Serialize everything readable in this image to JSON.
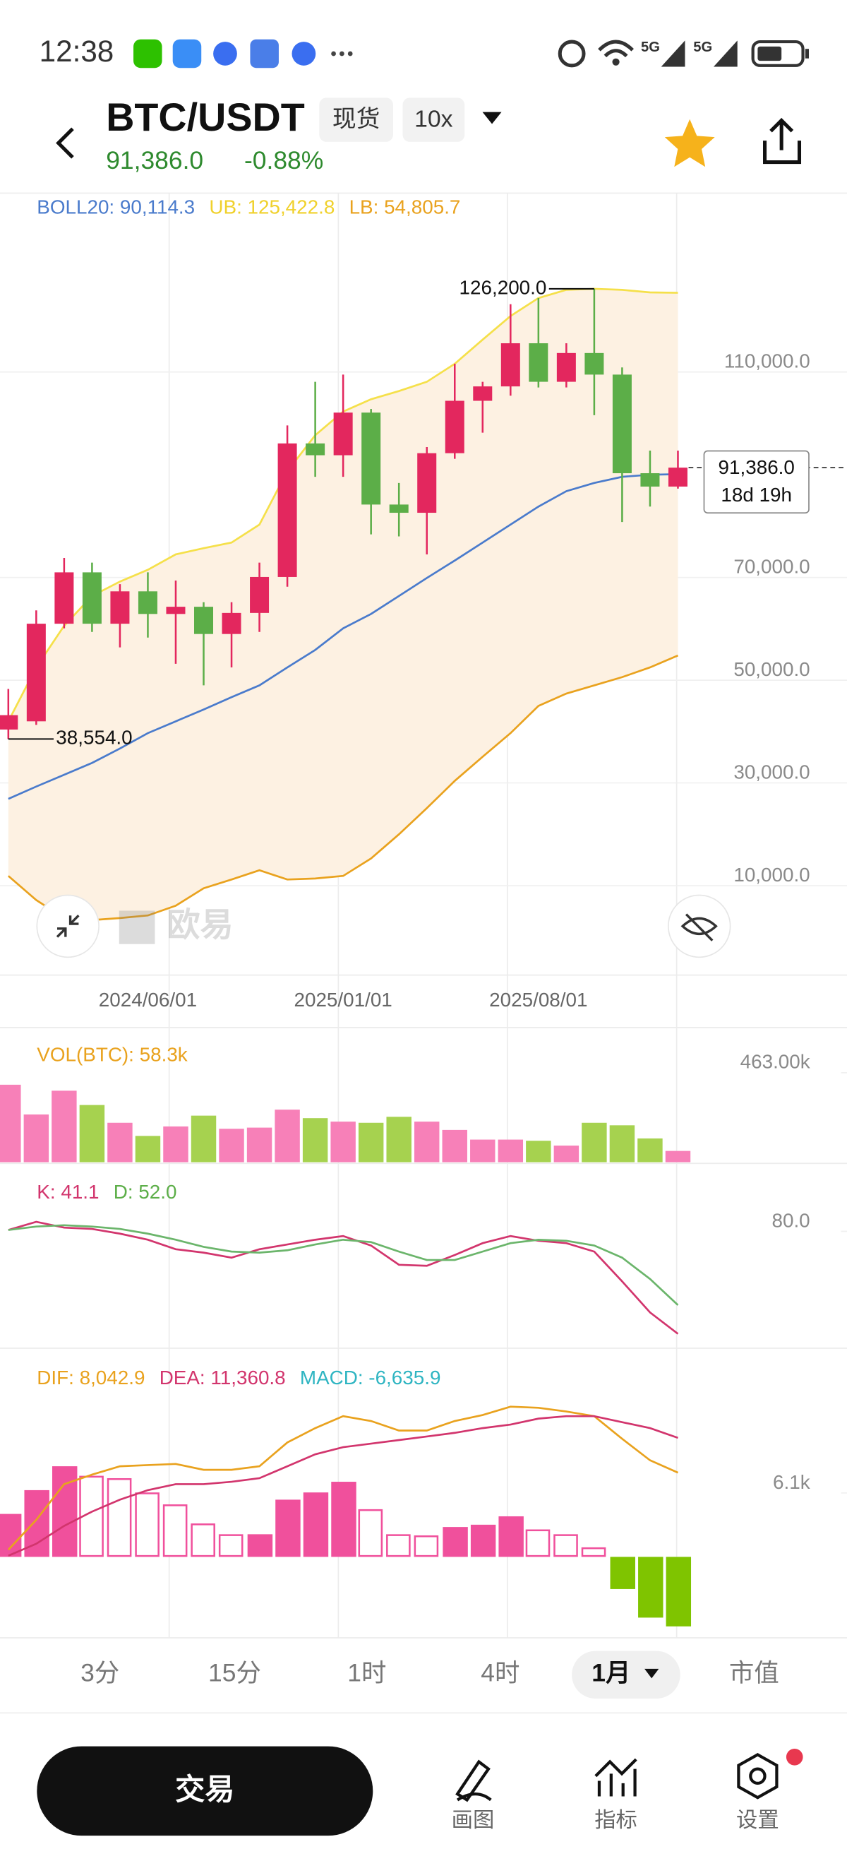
{
  "status_bar": {
    "time": "12:38"
  },
  "header": {
    "symbol": "BTC/USDT",
    "market": "现货",
    "leverage": "10x",
    "price": "91,386.0",
    "change": "-0.88%"
  },
  "chart_data": [
    {
      "type": "candlestick",
      "legend": [
        {
          "text": "BOLL20: 90,114.3",
          "color": "#4a7bcc"
        },
        {
          "text": "UB: 125,422.8",
          "color": "#f0d12c"
        },
        {
          "text": "LB: 54,805.7",
          "color": "#e9a21e"
        }
      ],
      "categories": [
        null,
        null,
        null,
        null,
        null,
        "2024/06/01",
        null,
        null,
        null,
        null,
        null,
        null,
        "2025/01/01",
        null,
        null,
        null,
        null,
        null,
        null,
        "2025/08/01",
        null,
        null,
        null,
        null,
        null
      ],
      "open": [
        40400,
        42000,
        61000,
        71000,
        61000,
        67300,
        62900,
        64300,
        59000,
        63100,
        70100,
        96100,
        93800,
        102100,
        84200,
        82600,
        94200,
        104400,
        107200,
        115600,
        108100,
        113700,
        109500,
        90300,
        87700
      ],
      "high": [
        48300,
        63600,
        73800,
        72900,
        68700,
        71000,
        69400,
        65200,
        65200,
        72900,
        99600,
        108100,
        109500,
        102800,
        88400,
        95400,
        111600,
        108100,
        123200,
        124400,
        115600,
        126200,
        110900,
        94700,
        94700
      ],
      "low": [
        38554,
        41300,
        60100,
        59400,
        56400,
        58300,
        53200,
        49000,
        52500,
        59400,
        68200,
        89600,
        89600,
        78400,
        78000,
        74500,
        93100,
        98200,
        105400,
        107000,
        107000,
        101600,
        80800,
        83800,
        87300
      ],
      "close": [
        43200,
        61000,
        71000,
        61000,
        67300,
        62900,
        64300,
        59000,
        63100,
        70100,
        96100,
        93800,
        102100,
        84200,
        82600,
        94200,
        104400,
        107200,
        115600,
        108100,
        113700,
        109500,
        90300,
        87700,
        91386
      ],
      "up_color": "#e3275e",
      "down_color": "#5cae48",
      "band_color": "#fdf1e2",
      "series": [
        {
          "color": "#f5e04a",
          "values": [
            42000,
            52500,
            60600,
            66400,
            69200,
            71500,
            74500,
            75700,
            76800,
            80300,
            90700,
            97700,
            102300,
            104700,
            106300,
            108100,
            111600,
            116300,
            120900,
            124400,
            126000,
            126200,
            126000,
            125500,
            125422.8
          ]
        },
        {
          "color": "#4a7bcc",
          "values": [
            26900,
            29300,
            31600,
            33900,
            36700,
            39700,
            42000,
            44300,
            46700,
            49000,
            52500,
            55900,
            60100,
            62900,
            66400,
            69900,
            73300,
            76800,
            80300,
            83800,
            86800,
            88400,
            89600,
            90000,
            90114.3
          ]
        },
        {
          "color": "#e9a21e",
          "values": [
            11900,
            7200,
            3700,
            3300,
            3700,
            4200,
            6100,
            9500,
            11200,
            13000,
            11200,
            11400,
            11900,
            15300,
            20000,
            25100,
            30400,
            35100,
            39700,
            45000,
            47400,
            49000,
            50600,
            52500,
            54805.7
          ]
        }
      ],
      "ylim": [
        -7400,
        144600
      ],
      "yticks": [
        {
          "value": 10000,
          "label": "10,000.0"
        },
        {
          "value": 30000,
          "label": "30,000.0"
        },
        {
          "value": 50000,
          "label": "50,000.0"
        },
        {
          "value": 70000,
          "label": "70,000.0"
        },
        {
          "value": 110000,
          "label": "110,000.0"
        }
      ],
      "annotations": [
        {
          "text": "126,200.0",
          "value": 126200,
          "index": 21,
          "side": "left"
        },
        {
          "text": "38,554.0",
          "value": 38554,
          "index": 0,
          "side": "right"
        }
      ],
      "last_price": {
        "text": "91,386.0",
        "countdown": "18d 19h",
        "value": 91386
      },
      "grid": true
    },
    {
      "type": "bar",
      "legend": [
        {
          "text": "VOL(BTC): 58.3k",
          "color": "#e9a21e"
        }
      ],
      "values": [
        401000,
        247000,
        370000,
        296000,
        204000,
        136000,
        185000,
        241000,
        173000,
        179000,
        272000,
        228000,
        210000,
        204000,
        235000,
        210000,
        167000,
        117000,
        117000,
        111000,
        86000,
        204000,
        191000,
        123000,
        58300
      ],
      "up_color": "#f780b8",
      "down_color": "#a6d24f",
      "ylim": [
        0,
        586000
      ],
      "yticks": [
        {
          "value": 463000,
          "label": "463.00k"
        }
      ]
    },
    {
      "type": "line",
      "legend": [
        {
          "text": "K: 41.1",
          "color": "#d2356d"
        },
        {
          "text": "D: 52.0",
          "color": "#5cae48"
        }
      ],
      "series": [
        {
          "color": "#d2356d",
          "values": [
            80.5,
            83.6,
            81.4,
            80.9,
            79.1,
            76.8,
            73.2,
            71.9,
            70.0,
            73.2,
            75.0,
            76.8,
            78.2,
            74.6,
            67.3,
            66.9,
            71.0,
            75.5,
            78.2,
            76.4,
            75.5,
            72.3,
            61.0,
            49.2,
            41.1
          ]
        },
        {
          "color": "#6bb56b",
          "values": [
            80.5,
            81.8,
            82.3,
            81.8,
            80.9,
            79.1,
            76.8,
            74.1,
            72.3,
            71.9,
            72.8,
            75.0,
            76.8,
            75.9,
            72.3,
            69.1,
            69.1,
            72.3,
            75.5,
            76.8,
            76.4,
            74.6,
            70.0,
            61.9,
            52.0
          ]
        }
      ],
      "ylim": [
        36.1,
        101.7
      ],
      "yticks": [
        {
          "value": 80,
          "label": "80.0"
        }
      ]
    },
    {
      "type": "macd",
      "legend": [
        {
          "text": "DIF: 8,042.9",
          "color": "#e9a21e"
        },
        {
          "text": "DEA: 11,360.8",
          "color": "#d2356d"
        },
        {
          "text": "MACD: -6,635.9",
          "color": "#2fb5c2"
        }
      ],
      "series": [
        {
          "color": "#e9a21e",
          "values": [
            680,
            3530,
            6940,
            7850,
            8650,
            8760,
            8870,
            8310,
            8310,
            8650,
            10920,
            12290,
            13430,
            12970,
            12060,
            12060,
            12970,
            13540,
            14340,
            14230,
            13880,
            13430,
            11270,
            9220,
            8042.9
          ]
        },
        {
          "color": "#d2356d",
          "values": [
            110,
            1250,
            2960,
            4320,
            5460,
            6370,
            6940,
            6940,
            7170,
            7510,
            8650,
            9790,
            10470,
            10810,
            11150,
            11490,
            11840,
            12290,
            12630,
            13200,
            13430,
            13430,
            12860,
            12290,
            11360.8
          ]
        }
      ],
      "histogram": [
        4100,
        6370,
        8650,
        7740,
        7510,
        6150,
        5010,
        3190,
        2160,
        2160,
        5460,
        6150,
        7170,
        4550,
        2160,
        2050,
        2850,
        3070,
        3870,
        2620,
        2160,
        910,
        -3070,
        -5800,
        -6635.9
      ],
      "up_color": "#f0509c",
      "down_color": "#7fc400",
      "ylim": [
        -7500,
        18900
      ],
      "yticks": [
        {
          "value": 6100,
          "label": "6.1k"
        }
      ]
    }
  ],
  "tabs": [
    "3分",
    "15分",
    "1时",
    "4时",
    "1月",
    "市值"
  ],
  "bottom_bar": {
    "trade": "交易",
    "draw": "画图",
    "indicators": "指标",
    "settings": "设置"
  }
}
